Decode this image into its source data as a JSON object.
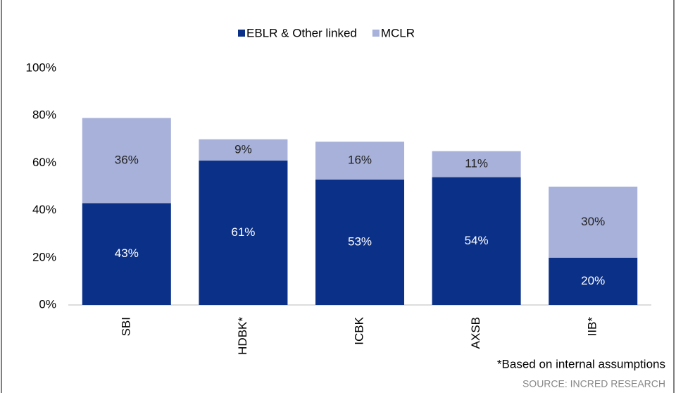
{
  "chart_data": {
    "type": "stacked_bar",
    "categories": [
      "SBI",
      "HDBK*",
      "ICBK",
      "AXSB",
      "IIB*"
    ],
    "series": [
      {
        "name": "EBLR & Other linked",
        "color": "#0b3088",
        "values": [
          43,
          61,
          53,
          54,
          20
        ],
        "value_labels": [
          "43%",
          "61%",
          "53%",
          "54%",
          "20%"
        ]
      },
      {
        "name": "MCLR",
        "color": "#a7b1d9",
        "values": [
          36,
          9,
          16,
          11,
          30
        ],
        "value_labels": [
          "36%",
          "9%",
          "16%",
          "11%",
          "30%"
        ]
      }
    ],
    "ylim": [
      0,
      100
    ],
    "yticks": [
      {
        "value": 0,
        "label": "0%"
      },
      {
        "value": 20,
        "label": "20%"
      },
      {
        "value": 40,
        "label": "40%"
      },
      {
        "value": 60,
        "label": "60%"
      },
      {
        "value": 80,
        "label": "80%"
      },
      {
        "value": 100,
        "label": "100%"
      }
    ],
    "legend": "top",
    "annotations": [
      "*Based on internal assumptions",
      "SOURCE: INCRED RESEARCH"
    ]
  }
}
